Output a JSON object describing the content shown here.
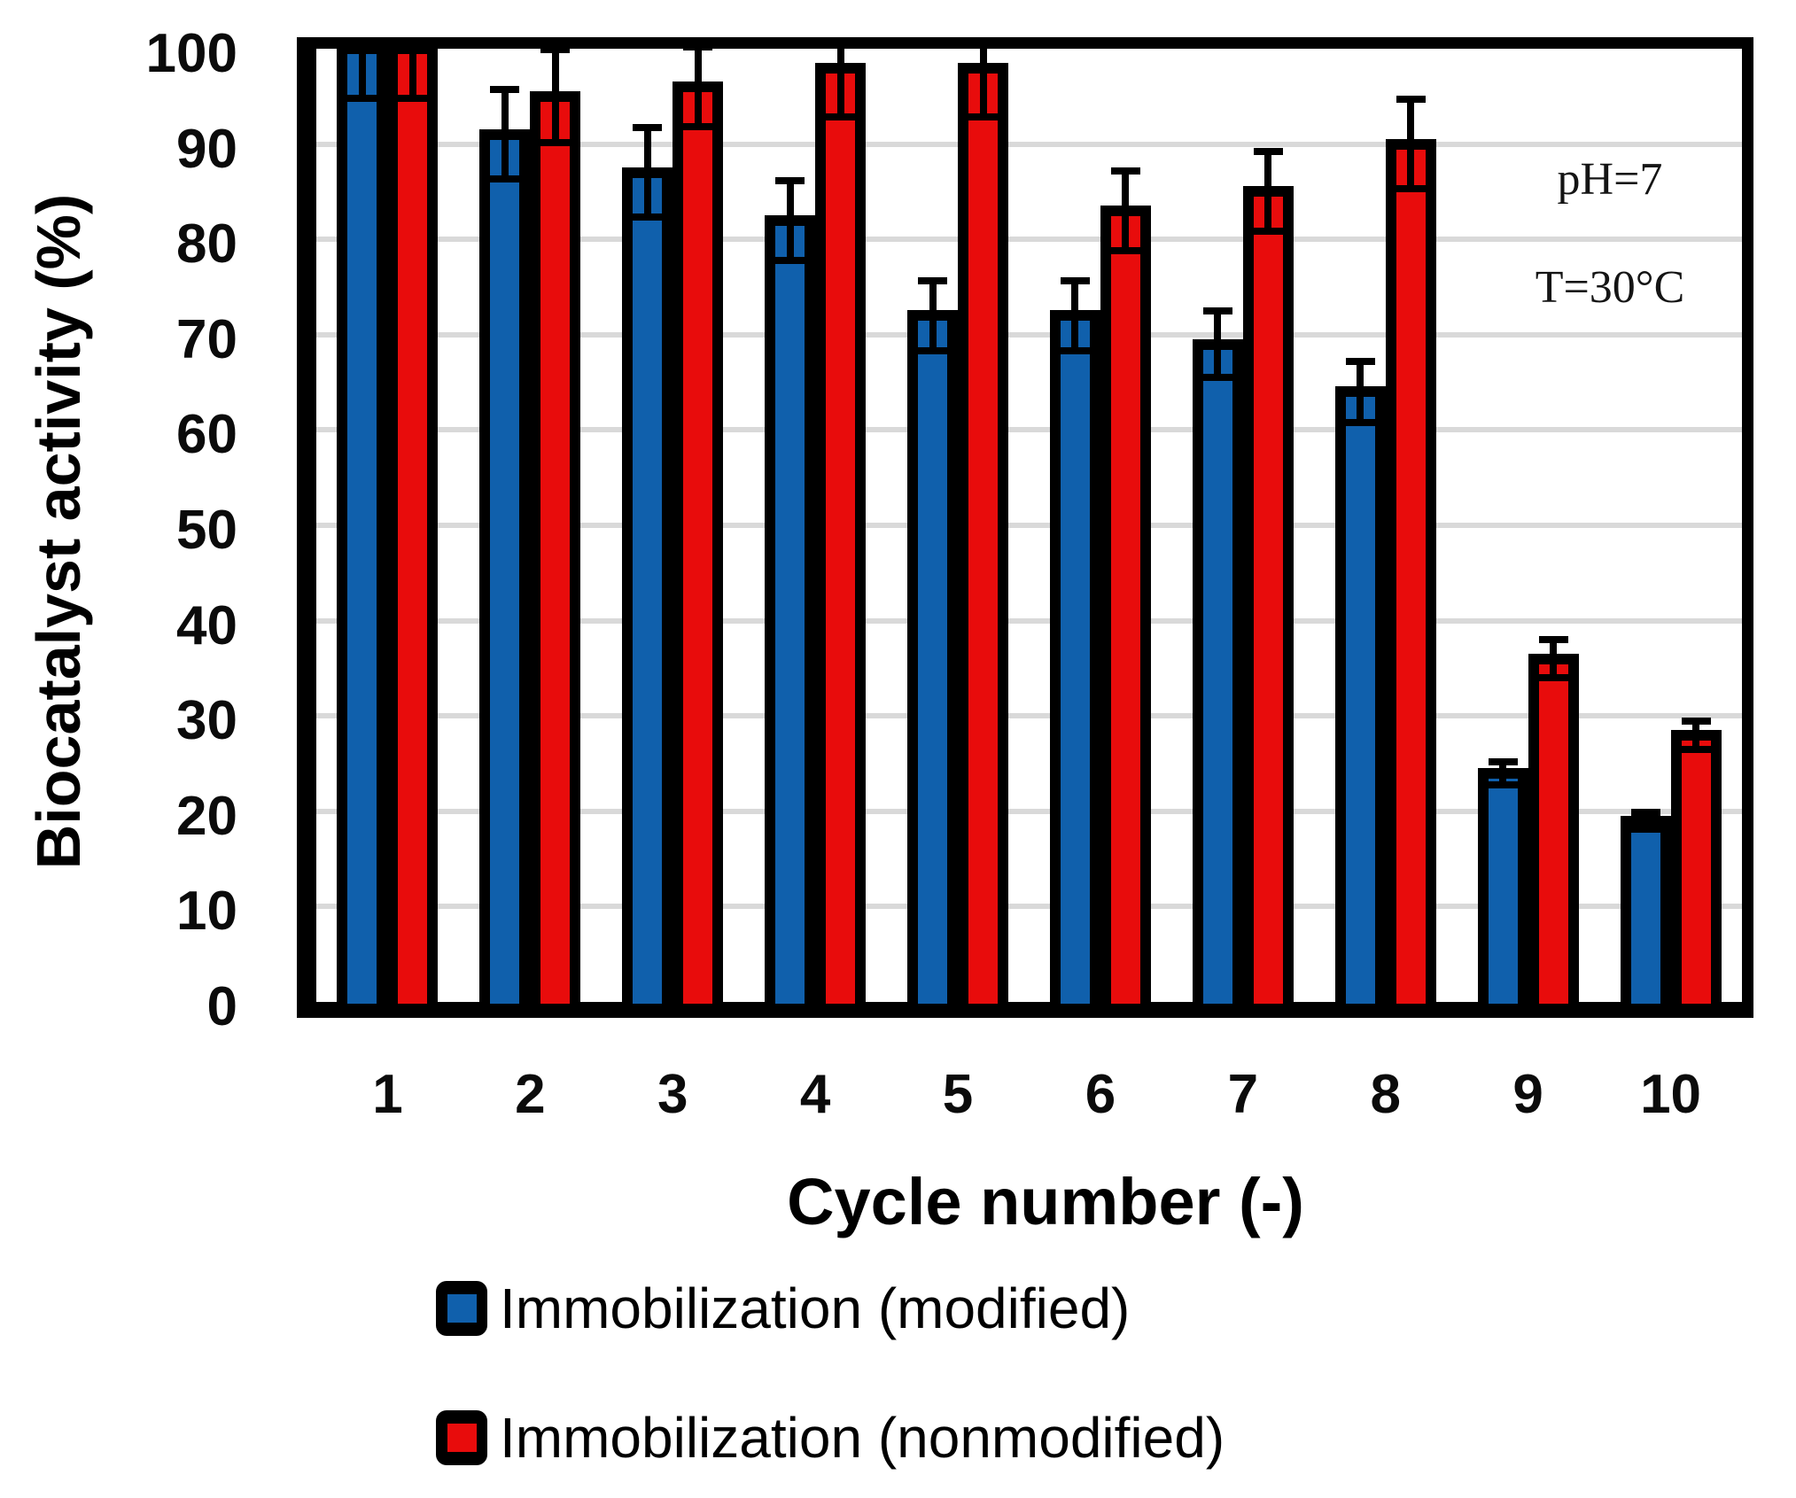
{
  "annotations": {
    "ph": "pH=7",
    "temperature": "T=30°C"
  },
  "legend": {
    "modified_label": "Immobilization (modified)",
    "nonmodified_label": "Immobilization (nonmodified)"
  },
  "colors": {
    "modified_fill": "#1060AC",
    "nonmodified_fill": "#E80C0C",
    "bar_outline": "#000000",
    "gridline": "#D9D9D9"
  },
  "chart_data": {
    "type": "bar",
    "title": "",
    "xlabel": "Cycle number (-)",
    "ylabel": "Biocatalyst activity (%)",
    "categories": [
      "1",
      "2",
      "3",
      "4",
      "5",
      "6",
      "7",
      "8",
      "9",
      "10"
    ],
    "yticks": [
      100,
      90,
      80,
      70,
      60,
      50,
      40,
      30,
      20,
      10,
      0
    ],
    "ylim": [
      0,
      100
    ],
    "grid": true,
    "legend_position": "bottom",
    "series": [
      {
        "name": "Immobilization (modified)",
        "color": "#1060AC",
        "values": [
          100,
          91,
          87,
          82,
          72,
          72,
          69,
          64,
          24,
          19
        ],
        "errors": [
          5,
          4.5,
          4.5,
          4,
          3.5,
          3.5,
          3.3,
          3,
          1,
          0.7
        ]
      },
      {
        "name": "Immobilization (nonmodified)",
        "color": "#E80C0C",
        "values": [
          100,
          95,
          96,
          98,
          98,
          83,
          85,
          90,
          36,
          28
        ],
        "errors": [
          5,
          4.7,
          4,
          5,
          5,
          4,
          4,
          4.5,
          1.8,
          1.3
        ]
      }
    ]
  }
}
